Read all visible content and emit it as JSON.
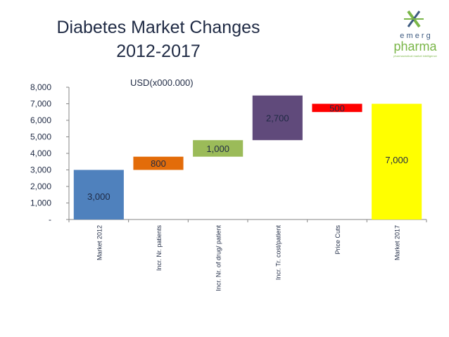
{
  "slide": {
    "title_line1": "Diabetes Market  Changes",
    "title_line2": "2012-2017"
  },
  "logo": {
    "line1": "e m e r g",
    "line2": "pharma",
    "tagline": "pharmaceutical market intelligence",
    "colors": {
      "green": "#7ab648",
      "dark": "#3d5a80"
    }
  },
  "chart_data": {
    "type": "waterfall",
    "title": "",
    "unit_label": "USD(x000.000)",
    "categories": [
      "Market 2012",
      "Incr. Nr. patients",
      "Incr. Nr. of drug/ patient",
      "Incr. Tr.  cost/patient",
      "Price Cuts",
      "Market 2017"
    ],
    "values": [
      3000,
      800,
      1000,
      2700,
      -500,
      7000
    ],
    "bases": [
      0,
      3000,
      3800,
      4800,
      7000,
      0
    ],
    "labels": [
      "3,000",
      "800",
      "1,000",
      "2,700",
      "500",
      "7,000"
    ],
    "colors": [
      "#4f81bd",
      "#e36c09",
      "#9bbb59",
      "#604a7b",
      "#ff0000",
      "#ffff00"
    ],
    "label_colors": [
      "#1f2a44",
      "#1f2a44",
      "#1f2a44",
      "#1f2a44",
      "#1f2a44",
      "#1f2a44"
    ],
    "ylim": [
      0,
      8000
    ],
    "yticks": [
      0,
      1000,
      2000,
      3000,
      4000,
      5000,
      6000,
      7000,
      8000
    ],
    "ytick_labels": [
      "-",
      "1,000",
      "2,000",
      "3,000",
      "4,000",
      "5,000",
      "6,000",
      "7,000",
      "8,000"
    ],
    "grid": false,
    "legend": "none"
  }
}
